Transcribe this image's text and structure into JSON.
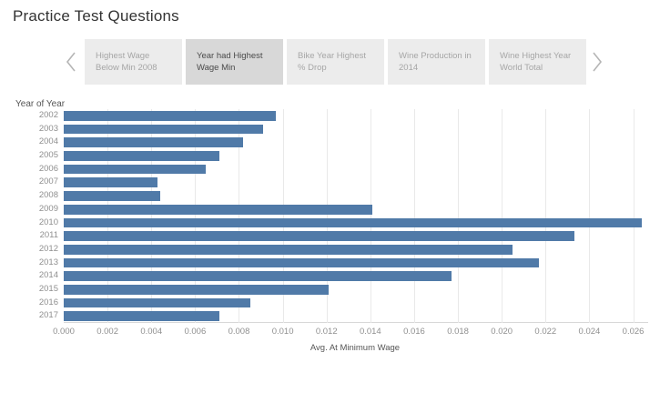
{
  "header": {
    "title": "Practice Test Questions"
  },
  "tabbar": {
    "tabs": [
      {
        "label": "Highest Wage Below Min 2008",
        "active": false
      },
      {
        "label": "Year had Highest Wage Min",
        "active": true
      },
      {
        "label": "Bike Year Highest % Drop",
        "active": false
      },
      {
        "label": "Wine Production in 2014",
        "active": false
      },
      {
        "label": "Wine Highest Year World Total",
        "active": false
      }
    ],
    "left_chevron": "chevron-left",
    "right_chevron": "chevron-right"
  },
  "chart_data": {
    "type": "bar",
    "orientation": "horizontal",
    "title": "",
    "ylabel": "Year of Year",
    "xlabel": "Avg. At Minimum Wage",
    "categories": [
      "2002",
      "2003",
      "2004",
      "2005",
      "2006",
      "2007",
      "2008",
      "2009",
      "2010",
      "2011",
      "2012",
      "2013",
      "2014",
      "2015",
      "2016",
      "2017"
    ],
    "values": [
      0.0097,
      0.0091,
      0.0082,
      0.0071,
      0.0065,
      0.0043,
      0.0044,
      0.0141,
      0.0264,
      0.0233,
      0.0205,
      0.0217,
      0.0177,
      0.0121,
      0.0085,
      0.0071
    ],
    "xlim": [
      0,
      0.0266
    ],
    "xtick_step": 0.002,
    "xtick_labels": [
      "0.000",
      "0.002",
      "0.004",
      "0.006",
      "0.008",
      "0.010",
      "0.012",
      "0.014",
      "0.016",
      "0.018",
      "0.020",
      "0.022",
      "0.024",
      "0.026"
    ],
    "grid": "vertical-light",
    "bar_color": "#507aa8",
    "gridline_color": "#e9e9e9"
  }
}
